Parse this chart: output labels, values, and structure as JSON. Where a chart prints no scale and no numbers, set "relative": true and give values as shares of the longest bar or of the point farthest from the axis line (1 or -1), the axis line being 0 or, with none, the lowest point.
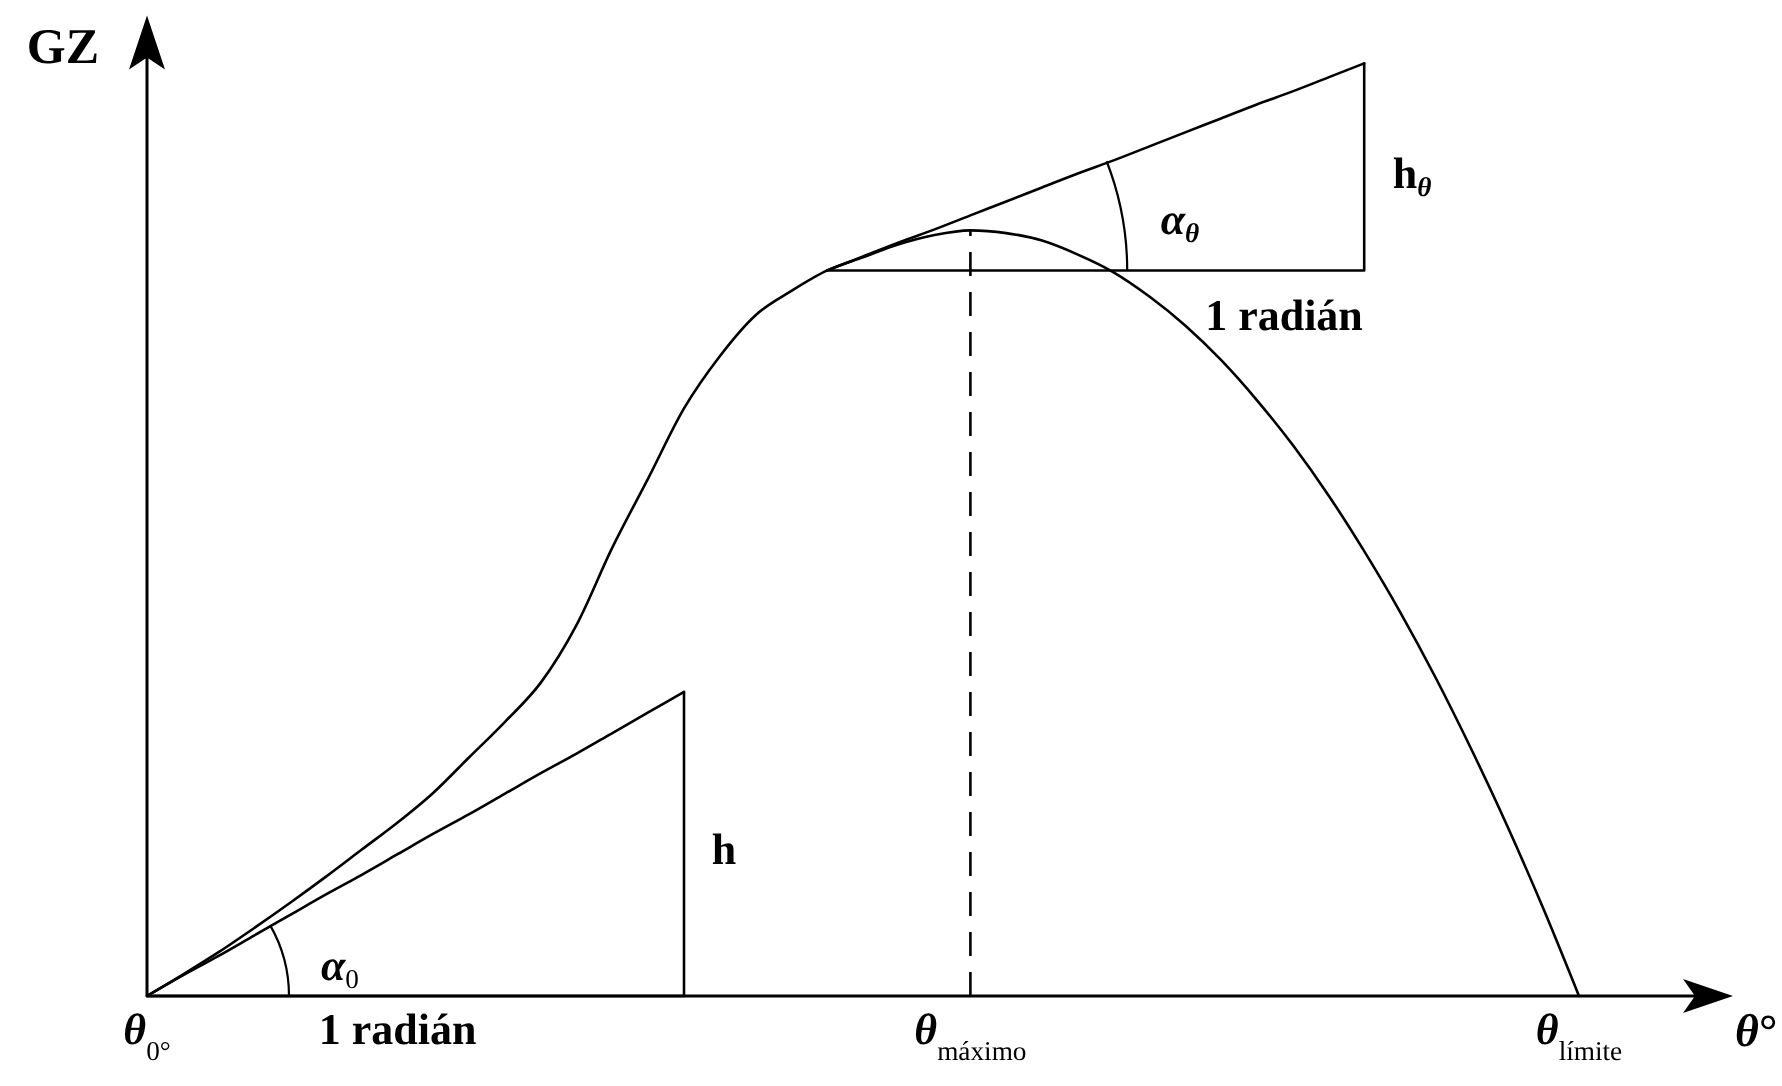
{
  "chart_data": {
    "type": "line",
    "relative": true,
    "xlabel": "θ°",
    "ylabel": "GZ",
    "categories": [
      "θ$_{0°}$",
      null,
      null,
      null,
      null,
      null,
      null,
      "1 radián",
      null,
      null,
      null,
      null,
      null,
      null,
      null,
      null,
      null,
      null,
      null,
      null,
      null,
      null,
      null,
      "θ$_{máximo}$",
      null,
      null,
      null,
      null,
      null,
      null,
      null,
      null,
      null,
      null,
      null,
      null,
      null,
      null,
      null,
      null,
      "θ$_{límite}$"
    ],
    "series": [
      {
        "color": "#000000",
        "values": [
          0,
          0.023,
          0.047,
          0.073,
          0.1,
          0.128,
          0.157,
          0.186,
          0.218,
          0.256,
          0.294,
          0.336,
          0.398,
          0.481,
          0.555,
          0.63,
          0.686,
          0.73,
          0.756,
          0.778,
          0.792,
          0.806,
          0.816,
          0.821,
          0.818,
          0.81,
          0.795,
          0.776,
          0.75,
          0.719,
          0.682,
          0.639,
          0.591,
          0.537,
          0.477,
          0.412,
          0.341,
          0.264,
          0.182,
          0.094,
          0
        ]
      },
      {
        "color": "#000000",
        "values": [
          0,
          0.022,
          0.043,
          0.065,
          0.087,
          0.109,
          0.13,
          0.152,
          0.174,
          0.195,
          0.217,
          0.239,
          0.26,
          0.282,
          0.304,
          0.326,
          null,
          null,
          null,
          null,
          null,
          null,
          null,
          null,
          null,
          null,
          null,
          null,
          null,
          null,
          null,
          null,
          null,
          null,
          null,
          null,
          null,
          null,
          null,
          null,
          null
        ]
      },
      {
        "color": "#000000",
        "values": [
          null,
          null,
          null,
          null,
          null,
          null,
          null,
          null,
          null,
          null,
          null,
          null,
          null,
          null,
          null,
          null,
          null,
          null,
          null,
          0.778,
          0.793,
          0.808,
          0.822,
          0.837,
          0.852,
          0.867,
          0.882,
          0.896,
          0.911,
          0.926,
          0.941,
          0.956,
          0.97,
          0.985,
          1,
          null,
          null,
          null,
          null,
          null,
          null
        ]
      },
      {
        "type": "step",
        "color": "#000000",
        "values": [
          0,
          0,
          0,
          0,
          0,
          0,
          0,
          0,
          0,
          0,
          0,
          0,
          0,
          0,
          0,
          0.326,
          null,
          null,
          null,
          null,
          null,
          null,
          null,
          null,
          null,
          null,
          null,
          null,
          null,
          null,
          null,
          null,
          null,
          null,
          null,
          null,
          null,
          null,
          null,
          null,
          null
        ]
      },
      {
        "type": "step",
        "color": "#000000",
        "values": [
          null,
          null,
          null,
          null,
          null,
          null,
          null,
          null,
          null,
          null,
          null,
          null,
          null,
          null,
          null,
          null,
          null,
          null,
          null,
          0.778,
          0.778,
          0.778,
          0.778,
          0.778,
          0.778,
          0.778,
          0.778,
          0.778,
          0.778,
          0.778,
          0.778,
          0.778,
          0.778,
          0.778,
          1,
          null,
          null,
          null,
          null,
          null,
          null
        ]
      }
    ],
    "ref_lines": [
      {
        "axis": "x",
        "value": "θ$_{máximo}$",
        "color": "#000000",
        "line_style": "dashed"
      }
    ],
    "annotations": [
      "h",
      "α$_{0}$",
      "h$_{θ}$",
      "α$_{θ}$",
      "1 radián"
    ]
  }
}
